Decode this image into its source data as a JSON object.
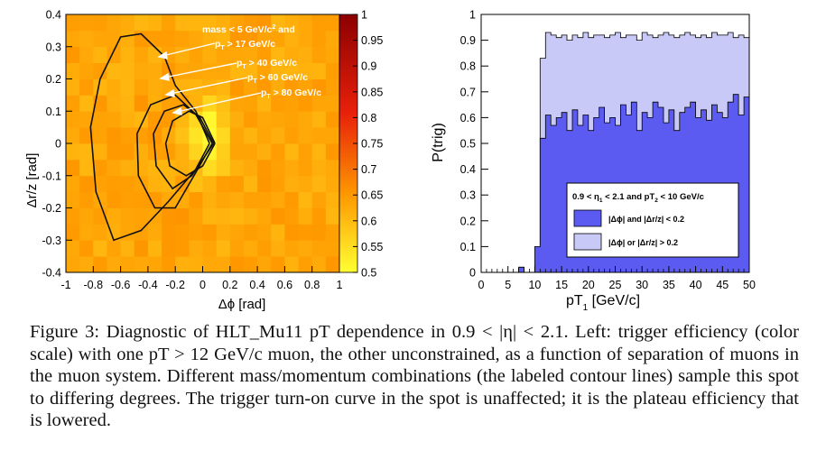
{
  "figure_number_label": "Figure 3:",
  "caption_body": "Diagnostic of HLT_Mu11 pT dependence in 0.9 < |η| < 2.1. Left: trigger efficiency (color scale) with one pT > 12 GeV/c muon, the other unconstrained, as a function of separation of muons in the muon system. Different mass/momentum combinations (the labeled contour lines) sample this spot to differing degrees. The trigger turn-on curve in the spot is unaffected; it is the plateau efficiency that is lowered.",
  "chart_data": [
    {
      "type": "heatmap",
      "xlabel": "Δϕ [rad]",
      "ylabel": "Δr/z [rad]",
      "xlim": [
        -1,
        1
      ],
      "ylim": [
        -0.4,
        0.4
      ],
      "x_ticks": [
        "-1",
        "-0.8",
        "-0.6",
        "-0.4",
        "-0.2",
        "0",
        "0.2",
        "0.4",
        "0.6",
        "0.8",
        "1"
      ],
      "y_ticks": [
        "-0.4",
        "-0.3",
        "-0.2",
        "-0.1",
        "0",
        "0.1",
        "0.2",
        "0.3",
        "0.4"
      ],
      "colorbar": {
        "range": [
          0.5,
          1.0
        ],
        "tick_labels": [
          "0.5",
          "0.55",
          "0.6",
          "0.65",
          "0.7",
          "0.75",
          "0.8",
          "0.85",
          "0.9",
          "0.95",
          "1"
        ],
        "colors": [
          "#ffff33",
          "#ff9900",
          "#e8200a",
          "#8b0000"
        ]
      },
      "hotspot": {
        "dphi": 0.02,
        "drz": 0.02,
        "value": 1.0
      },
      "background_value": 0.87,
      "annotations": [
        {
          "text": "mass < 5 GeV/c² and",
          "contour": null
        },
        {
          "text": "pT > 17 GeV/c",
          "contour": 0
        },
        {
          "text": "pT > 40 GeV/c",
          "contour": 1
        },
        {
          "text": "pT > 60 GeV/c",
          "contour": 2
        },
        {
          "text": "pT > 80 GeV/c",
          "contour": 3
        }
      ],
      "contours": [
        {
          "label": "pT > 17 GeV/c",
          "points": [
            [
              0.05,
              0.0
            ],
            [
              -0.05,
              0.1
            ],
            [
              -0.2,
              0.18
            ],
            [
              -0.28,
              0.27
            ],
            [
              -0.45,
              0.34
            ],
            [
              -0.6,
              0.33
            ],
            [
              -0.75,
              0.2
            ],
            [
              -0.82,
              0.05
            ],
            [
              -0.78,
              -0.15
            ],
            [
              -0.65,
              -0.3
            ],
            [
              -0.45,
              -0.27
            ],
            [
              -0.25,
              -0.18
            ],
            [
              -0.05,
              -0.08
            ],
            [
              0.05,
              0.0
            ]
          ]
        },
        {
          "label": "pT > 40 GeV/c",
          "points": [
            [
              0.07,
              0.0
            ],
            [
              -0.05,
              0.09
            ],
            [
              -0.2,
              0.15
            ],
            [
              -0.38,
              0.12
            ],
            [
              -0.48,
              0.03
            ],
            [
              -0.47,
              -0.1
            ],
            [
              -0.35,
              -0.2
            ],
            [
              -0.2,
              -0.2
            ],
            [
              -0.05,
              -0.09
            ],
            [
              0.07,
              0.0
            ]
          ]
        },
        {
          "label": "pT > 60 GeV/c",
          "points": [
            [
              0.08,
              0.0
            ],
            [
              -0.02,
              0.08
            ],
            [
              -0.14,
              0.12
            ],
            [
              -0.28,
              0.1
            ],
            [
              -0.36,
              0.03
            ],
            [
              -0.34,
              -0.07
            ],
            [
              -0.22,
              -0.14
            ],
            [
              -0.08,
              -0.1
            ],
            [
              0.08,
              0.0
            ]
          ]
        },
        {
          "label": "pT > 80 GeV/c",
          "points": [
            [
              0.09,
              0.0
            ],
            [
              0.0,
              0.08
            ],
            [
              -0.1,
              0.1
            ],
            [
              -0.22,
              0.07
            ],
            [
              -0.27,
              0.0
            ],
            [
              -0.24,
              -0.07
            ],
            [
              -0.12,
              -0.1
            ],
            [
              0.0,
              -0.07
            ],
            [
              0.09,
              0.0
            ]
          ]
        }
      ]
    },
    {
      "type": "area",
      "xlabel": "pT₁ [GeV/c]",
      "ylabel": "P(trig)",
      "xlim": [
        0,
        50
      ],
      "ylim": [
        0,
        1
      ],
      "x_ticks": [
        "0",
        "5",
        "10",
        "15",
        "20",
        "25",
        "30",
        "35",
        "40",
        "45",
        "50"
      ],
      "y_ticks": [
        "0",
        "0.1",
        "0.2",
        "0.3",
        "0.4",
        "0.5",
        "0.6",
        "0.7",
        "0.8",
        "0.9",
        "1"
      ],
      "bin_width": 1,
      "x_bin_edges_start": 0,
      "legend": {
        "position": "bottom-right",
        "header": "0.9 < η₁ < 2.1 and pT₂ < 10 GeV/c",
        "entries": [
          {
            "label": "|Δϕ| and |Δr/z| < 0.2",
            "color": "#5b5bf2"
          },
          {
            "label": "|Δϕ| or |Δr/z| > 0.2",
            "color": "#c9c9f8"
          }
        ]
      },
      "series": [
        {
          "label_ref": 0,
          "values": [
            0,
            0,
            0,
            0,
            0,
            0,
            0,
            0.02,
            0,
            0,
            0.1,
            0.52,
            0.61,
            0.57,
            0.6,
            0.62,
            0.55,
            0.63,
            0.57,
            0.61,
            0.55,
            0.6,
            0.64,
            0.58,
            0.6,
            0.57,
            0.65,
            0.61,
            0.66,
            0.55,
            0.62,
            0.6,
            0.66,
            0.64,
            0.58,
            0.63,
            0.55,
            0.62,
            0.64,
            0.66,
            0.6,
            0.63,
            0.59,
            0.65,
            0.62,
            0.6,
            0.66,
            0.69,
            0.61,
            0.68
          ]
        },
        {
          "label_ref": 1,
          "values": [
            0,
            0,
            0,
            0,
            0,
            0,
            0,
            0.02,
            0,
            0,
            0.1,
            0.83,
            0.93,
            0.92,
            0.91,
            0.92,
            0.9,
            0.92,
            0.91,
            0.93,
            0.91,
            0.92,
            0.92,
            0.91,
            0.92,
            0.93,
            0.91,
            0.92,
            0.92,
            0.9,
            0.93,
            0.92,
            0.91,
            0.92,
            0.93,
            0.92,
            0.91,
            0.92,
            0.93,
            0.92,
            0.91,
            0.92,
            0.91,
            0.93,
            0.92,
            0.92,
            0.93,
            0.91,
            0.92,
            0.91
          ]
        }
      ]
    }
  ]
}
